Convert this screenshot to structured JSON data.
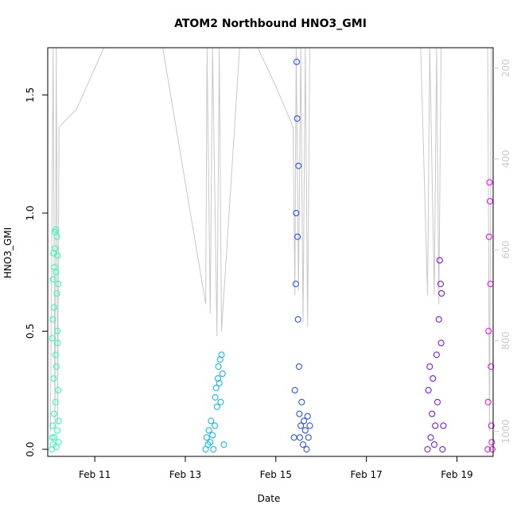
{
  "chart_data": {
    "type": "scatter",
    "title": "ATOM2 Northbound HNO3_GMI",
    "xlabel": "Date",
    "ylabel": "HNO3_GMI",
    "y_right_label": "",
    "xlim": [
      9.96,
      19.8
    ],
    "ylim": [
      -0.03,
      1.7
    ],
    "y_right_lim": [
      1055,
      155
    ],
    "x_ticks": [
      {
        "value": 11,
        "label": "Feb 11"
      },
      {
        "value": 13,
        "label": "Feb 13"
      },
      {
        "value": 15,
        "label": "Feb 15"
      },
      {
        "value": 17,
        "label": "Feb 17"
      },
      {
        "value": 19,
        "label": "Feb 19"
      }
    ],
    "y_ticks": [
      {
        "value": 0.0,
        "label": "0.0"
      },
      {
        "value": 0.5,
        "label": "0.5"
      },
      {
        "value": 1.0,
        "label": "1.0"
      },
      {
        "value": 1.5,
        "label": "1.5"
      }
    ],
    "y_right_ticks": [
      {
        "value": 200,
        "label": "200"
      },
      {
        "value": 400,
        "label": "400"
      },
      {
        "value": 600,
        "label": "600"
      },
      {
        "value": 800,
        "label": "800"
      },
      {
        "value": 1000,
        "label": "1000"
      }
    ],
    "grid": false,
    "series": [
      {
        "color": "#1FFFB4",
        "x": [
          10.05,
          10.06,
          10.06,
          10.07,
          10.07,
          10.08,
          10.08,
          10.09,
          10.09,
          10.1,
          10.1,
          10.11,
          10.11,
          10.12,
          10.12,
          10.13,
          10.13,
          10.14,
          10.14,
          10.15,
          10.15,
          10.16,
          10.16,
          10.17,
          10.17,
          10.18,
          10.18,
          10.19,
          10.19,
          10.2,
          10.2
        ],
        "y": [
          0.0,
          0.05,
          0.47,
          0.55,
          0.1,
          0.02,
          0.72,
          0.83,
          0.3,
          0.15,
          0.6,
          0.77,
          0.05,
          0.85,
          0.92,
          0.4,
          0.2,
          0.75,
          0.93,
          0.01,
          0.35,
          0.9,
          0.66,
          0.08,
          0.5,
          0.82,
          0.45,
          0.25,
          0.7,
          0.12,
          0.03
        ]
      },
      {
        "color": "#00B4F0",
        "x": [
          13.45,
          13.47,
          13.5,
          13.52,
          13.55,
          13.57,
          13.6,
          13.62,
          13.65,
          13.66,
          13.68,
          13.7,
          13.72,
          13.73,
          13.75,
          13.77,
          13.78,
          13.8,
          13.82,
          13.85
        ],
        "y": [
          0.0,
          0.05,
          0.02,
          0.08,
          0.03,
          0.12,
          0.06,
          0.0,
          0.1,
          0.22,
          0.26,
          0.18,
          0.3,
          0.35,
          0.28,
          0.38,
          0.2,
          0.4,
          0.32,
          0.02
        ]
      },
      {
        "color": "#1446FF",
        "x": [
          15.4,
          15.42,
          15.44,
          15.45,
          15.46,
          15.47,
          15.48,
          15.49,
          15.5,
          15.51,
          15.52,
          15.53,
          15.55,
          15.57,
          15.6,
          15.62,
          15.65,
          15.68,
          15.7,
          15.72,
          15.75
        ],
        "y": [
          0.05,
          0.25,
          0.7,
          1.0,
          1.64,
          1.4,
          0.9,
          0.55,
          1.2,
          0.35,
          0.15,
          0.05,
          0.1,
          0.2,
          0.02,
          0.12,
          0.08,
          0.0,
          0.14,
          0.05,
          0.1
        ]
      },
      {
        "color": "#6E00FF",
        "x": [
          18.35,
          18.37,
          18.4,
          18.42,
          18.45,
          18.47,
          18.5,
          18.52,
          18.55,
          18.57,
          18.6,
          18.62,
          18.64,
          18.65,
          18.66,
          18.68,
          18.7
        ],
        "y": [
          0.0,
          0.25,
          0.35,
          0.05,
          0.15,
          0.3,
          0.02,
          0.1,
          0.4,
          0.2,
          0.55,
          0.8,
          0.7,
          0.45,
          0.66,
          0.0,
          0.1
        ]
      },
      {
        "color": "#F000F0",
        "x": [
          19.68,
          19.69,
          19.7,
          19.71,
          19.72,
          19.73,
          19.74,
          19.75,
          19.76,
          19.77,
          19.78
        ],
        "y": [
          0.0,
          0.2,
          0.5,
          0.9,
          1.13,
          1.05,
          0.7,
          0.35,
          0.1,
          0.03,
          0.0
        ]
      }
    ],
    "overlay_line": {
      "color": "#c8c8c8",
      "x": [
        10.02,
        10.08,
        10.12,
        10.15,
        10.18,
        10.21,
        10.6,
        11.2,
        11.8,
        12.5,
        13.45,
        13.48,
        13.55,
        13.6,
        13.7,
        13.75,
        13.8,
        14.2,
        14.6,
        15.0,
        15.38,
        15.42,
        15.45,
        15.5,
        15.55,
        15.6,
        15.65,
        15.7,
        15.75,
        15.8,
        16.4,
        17.0,
        17.6,
        18.2,
        18.35,
        18.4,
        18.5,
        18.55,
        18.6,
        18.65,
        18.7,
        18.9,
        19.1,
        19.3,
        19.5,
        19.68,
        19.72,
        19.76
      ],
      "y": [
        1000,
        150,
        990,
        150,
        980,
        330,
        290,
        150,
        150,
        150,
        720,
        150,
        740,
        150,
        790,
        150,
        780,
        150,
        150,
        240,
        330,
        700,
        150,
        690,
        150,
        760,
        150,
        770,
        150,
        150,
        150,
        150,
        150,
        150,
        700,
        150,
        700,
        150,
        720,
        150,
        150,
        150,
        150,
        150,
        150,
        150,
        1000,
        150
      ]
    }
  }
}
